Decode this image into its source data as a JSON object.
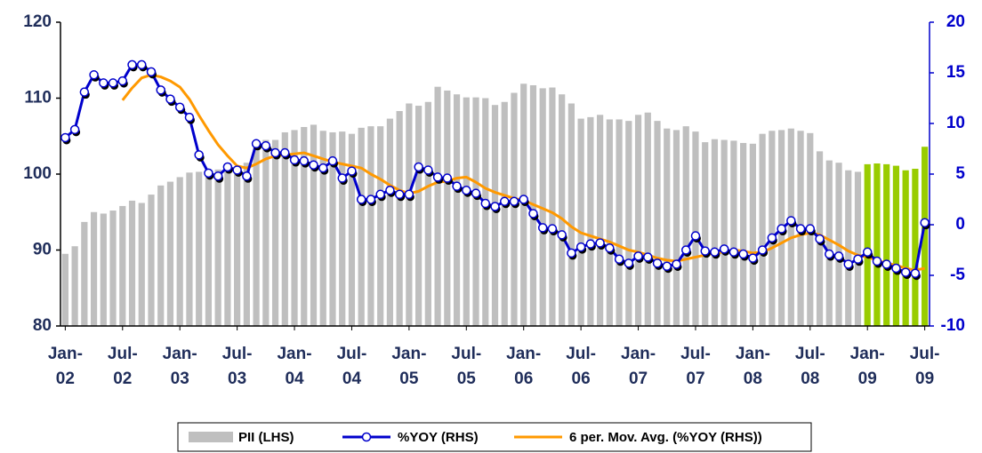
{
  "chart_data": {
    "type": "combo",
    "categories": [
      "Jan-02",
      null,
      null,
      null,
      null,
      null,
      "Jul-02",
      null,
      null,
      null,
      null,
      null,
      "Jan-03",
      null,
      null,
      null,
      null,
      null,
      "Jul-03",
      null,
      null,
      null,
      null,
      null,
      "Jan-04",
      null,
      null,
      null,
      null,
      null,
      "Jul-04",
      null,
      null,
      null,
      null,
      null,
      "Jan-05",
      null,
      null,
      null,
      null,
      null,
      "Jul-05",
      null,
      null,
      null,
      null,
      null,
      "Jan-06",
      null,
      null,
      null,
      null,
      null,
      "Jul-06",
      null,
      null,
      null,
      null,
      null,
      "Jan-07",
      null,
      null,
      null,
      null,
      null,
      "Jul-07",
      null,
      null,
      null,
      null,
      null,
      "Jan-08",
      null,
      null,
      null,
      null,
      null,
      "Jul-08",
      null,
      null,
      null,
      null,
      null,
      "Jan-09",
      null,
      null,
      null,
      null,
      null,
      "Jul-09"
    ],
    "series": [
      {
        "name": "PII (LHS)",
        "type": "bar",
        "color": "#bfbfbf",
        "colors": [
          "#bfbfbf",
          "#bfbfbf",
          "#bfbfbf",
          "#bfbfbf",
          "#bfbfbf",
          "#bfbfbf",
          "#bfbfbf",
          "#bfbfbf",
          "#bfbfbf",
          "#bfbfbf",
          "#bfbfbf",
          "#bfbfbf",
          "#bfbfbf",
          "#bfbfbf",
          "#bfbfbf",
          "#bfbfbf",
          "#bfbfbf",
          "#bfbfbf",
          "#bfbfbf",
          "#bfbfbf",
          "#bfbfbf",
          "#bfbfbf",
          "#bfbfbf",
          "#bfbfbf",
          "#bfbfbf",
          "#bfbfbf",
          "#bfbfbf",
          "#bfbfbf",
          "#bfbfbf",
          "#bfbfbf",
          "#bfbfbf",
          "#bfbfbf",
          "#bfbfbf",
          "#bfbfbf",
          "#bfbfbf",
          "#bfbfbf",
          "#bfbfbf",
          "#bfbfbf",
          "#bfbfbf",
          "#bfbfbf",
          "#bfbfbf",
          "#bfbfbf",
          "#bfbfbf",
          "#bfbfbf",
          "#bfbfbf",
          "#bfbfbf",
          "#bfbfbf",
          "#bfbfbf",
          "#bfbfbf",
          "#bfbfbf",
          "#bfbfbf",
          "#bfbfbf",
          "#bfbfbf",
          "#bfbfbf",
          "#bfbfbf",
          "#bfbfbf",
          "#bfbfbf",
          "#bfbfbf",
          "#bfbfbf",
          "#bfbfbf",
          "#bfbfbf",
          "#bfbfbf",
          "#bfbfbf",
          "#bfbfbf",
          "#bfbfbf",
          "#bfbfbf",
          "#bfbfbf",
          "#bfbfbf",
          "#bfbfbf",
          "#bfbfbf",
          "#bfbfbf",
          "#bfbfbf",
          "#bfbfbf",
          "#bfbfbf",
          "#bfbfbf",
          "#bfbfbf",
          "#bfbfbf",
          "#bfbfbf",
          "#bfbfbf",
          "#bfbfbf",
          "#bfbfbf",
          "#bfbfbf",
          "#bfbfbf",
          "#bfbfbf",
          "#99cc00",
          "#99cc00",
          "#99cc00",
          "#99cc00",
          "#99cc00",
          "#99cc00",
          "#99cc00"
        ],
        "values": [
          89.5,
          90.5,
          93.7,
          95,
          94.8,
          95.2,
          95.8,
          96.5,
          96.2,
          97.3,
          98.5,
          99,
          99.6,
          100.2,
          100.3,
          100.4,
          100.6,
          101,
          100.3,
          101.5,
          103.5,
          104.5,
          104.5,
          105.5,
          105.8,
          106.2,
          106.5,
          105.7,
          105.5,
          105.6,
          105.3,
          106.1,
          106.3,
          106.3,
          107.3,
          108.3,
          109.3,
          109,
          109.5,
          111.5,
          111,
          110.5,
          110.1,
          110.1,
          110,
          109.1,
          109.5,
          110.7,
          111.9,
          111.7,
          111.3,
          111.4,
          110.5,
          109.3,
          107.3,
          107.5,
          107.8,
          107.2,
          107.2,
          107,
          107.8,
          108.1,
          107,
          106,
          105.8,
          106.3,
          105.6,
          104.2,
          104.6,
          104.5,
          104.4,
          104.1,
          104,
          105.3,
          105.7,
          105.8,
          106,
          105.7,
          105.4,
          103,
          101.8,
          101.5,
          100.5,
          100.3,
          101.3,
          101.4,
          101.3,
          101.1,
          100.5,
          100.7,
          103.6
        ]
      },
      {
        "name": "%YOY (RHS)",
        "type": "line",
        "color": "#0000cc",
        "marker": "circle",
        "axis": "y2",
        "values": [
          8.6,
          9.4,
          13.1,
          14.8,
          14.0,
          14.0,
          14.2,
          15.8,
          15.8,
          15.1,
          13.3,
          12.4,
          11.6,
          10.6,
          6.9,
          5.1,
          4.8,
          5.7,
          5.4,
          4.8,
          8.0,
          7.8,
          7.1,
          7.1,
          6.4,
          6.3,
          5.9,
          5.6,
          6.3,
          4.6,
          5.3,
          2.5,
          2.5,
          3.0,
          3.4,
          3.0,
          3.0,
          5.7,
          5.4,
          4.7,
          4.6,
          3.8,
          3.4,
          3.1,
          2.1,
          1.8,
          2.3,
          2.3,
          2.5,
          1.1,
          -0.3,
          -0.4,
          -1.0,
          -2.8,
          -2.2,
          -1.9,
          -1.8,
          -2.3,
          -3.4,
          -3.8,
          -3.1,
          -3.2,
          -3.8,
          -4.1,
          -3.9,
          -2.5,
          -1.1,
          -2.6,
          -2.7,
          -2.4,
          -2.7,
          -2.9,
          -3.3,
          -2.5,
          -1.3,
          -0.4,
          0.4,
          -0.4,
          -0.4,
          -1.4,
          -2.9,
          -3.1,
          -3.9,
          -3.4,
          -2.7,
          -3.6,
          -3.9,
          -4.3,
          -4.7,
          -4.8,
          0.2
        ]
      },
      {
        "name": "6 per. Mov. Avg. (%YOY (RHS))",
        "type": "line",
        "color": "#ff9900",
        "axis": "y2",
        "values": [
          null,
          null,
          null,
          null,
          null,
          null,
          12.3,
          13.5,
          14.5,
          14.8,
          14.6,
          14.2,
          13.6,
          12.4,
          10.8,
          9.3,
          7.9,
          6.8,
          5.8,
          5.6,
          6.0,
          6.5,
          6.8,
          6.9,
          7.0,
          7.1,
          6.8,
          6.5,
          6.2,
          6.0,
          5.8,
          5.6,
          5.0,
          4.5,
          3.9,
          3.4,
          3.1,
          3.3,
          3.8,
          4.2,
          4.3,
          4.6,
          4.7,
          4.2,
          3.6,
          3.2,
          2.9,
          2.6,
          2.4,
          2.0,
          1.6,
          1.2,
          0.6,
          -0.2,
          -0.8,
          -1.1,
          -1.4,
          -1.7,
          -2.1,
          -2.5,
          -2.7,
          -3.0,
          -3.3,
          -3.5,
          -3.6,
          -3.4,
          -3.2,
          -3.0,
          -2.8,
          -2.7,
          -2.5,
          -2.6,
          -2.8,
          -2.7,
          -2.3,
          -1.8,
          -1.3,
          -1.0,
          -0.8,
          -1.0,
          -1.5,
          -2.0,
          -2.6,
          -3.0,
          -3.2,
          -3.5,
          -3.8,
          -4.0,
          -4.3,
          -4.5,
          -4.3
        ]
      }
    ],
    "ylim": [
      80,
      120
    ],
    "yticks": [
      80,
      90,
      100,
      110,
      120
    ],
    "y2lim": [
      -10,
      20
    ],
    "y2ticks": [
      -10,
      -5,
      0,
      5,
      10,
      15,
      20
    ],
    "grid": false,
    "legend": "bottom"
  }
}
